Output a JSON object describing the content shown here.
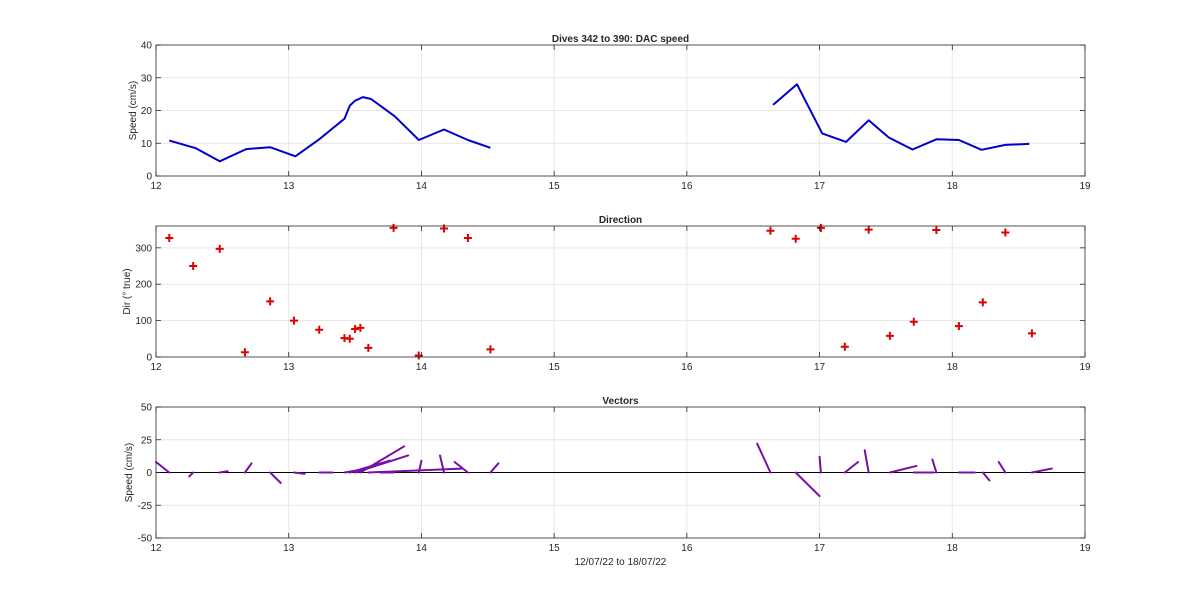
{
  "figure": {
    "xlabel": "12/07/22 to 18/07/22"
  },
  "chart_data": [
    {
      "type": "line",
      "title": "Dives 342 to 390: DAC speed",
      "ylabel": "Speed (cm/s)",
      "xlim": [
        12,
        19
      ],
      "ylim": [
        0,
        40
      ],
      "xticks": [
        12,
        13,
        14,
        15,
        16,
        17,
        18,
        19
      ],
      "yticks": [
        0,
        10,
        20,
        30,
        40
      ],
      "grid": true,
      "color": "#0000cc",
      "segments": [
        [
          [
            12.1,
            10.8
          ],
          [
            12.3,
            8.5
          ],
          [
            12.48,
            4.5
          ],
          [
            12.68,
            8.2
          ],
          [
            12.86,
            8.8
          ],
          [
            13.05,
            6.0
          ],
          [
            13.23,
            11.2
          ],
          [
            13.42,
            17.5
          ],
          [
            13.46,
            21.5
          ],
          [
            13.5,
            23.0
          ],
          [
            13.56,
            24.1
          ],
          [
            13.62,
            23.5
          ],
          [
            13.8,
            18.2
          ],
          [
            13.98,
            11.0
          ],
          [
            14.17,
            14.2
          ],
          [
            14.35,
            11.0
          ],
          [
            14.52,
            8.6
          ]
        ],
        [
          [
            16.65,
            21.7
          ],
          [
            16.83,
            28.0
          ],
          [
            17.02,
            13.0
          ],
          [
            17.2,
            10.4
          ],
          [
            17.37,
            17.0
          ],
          [
            17.52,
            11.8
          ],
          [
            17.7,
            8.1
          ],
          [
            17.88,
            11.2
          ],
          [
            18.05,
            11.0
          ],
          [
            18.22,
            8.0
          ],
          [
            18.4,
            9.5
          ],
          [
            18.58,
            9.8
          ]
        ]
      ]
    },
    {
      "type": "scatter",
      "title": "Direction",
      "ylabel": "Dir (° true)",
      "xlim": [
        12,
        19
      ],
      "ylim": [
        0,
        360
      ],
      "xticks": [
        12,
        13,
        14,
        15,
        16,
        17,
        18,
        19
      ],
      "yticks": [
        0,
        100,
        200,
        300
      ],
      "grid": true,
      "marker": "+",
      "color": "#dd0000",
      "points": [
        [
          12.1,
          327
        ],
        [
          12.28,
          250
        ],
        [
          12.48,
          297
        ],
        [
          12.67,
          13
        ],
        [
          12.86,
          153
        ],
        [
          13.04,
          100
        ],
        [
          13.23,
          75
        ],
        [
          13.42,
          52
        ],
        [
          13.46,
          50
        ],
        [
          13.5,
          77
        ],
        [
          13.54,
          80
        ],
        [
          13.6,
          25
        ],
        [
          13.79,
          355
        ],
        [
          13.98,
          4
        ],
        [
          14.17,
          353
        ],
        [
          14.35,
          327
        ],
        [
          14.52,
          21
        ],
        [
          16.63,
          347
        ],
        [
          16.82,
          325
        ],
        [
          17.01,
          355
        ],
        [
          17.19,
          28
        ],
        [
          17.37,
          350
        ],
        [
          17.53,
          58
        ],
        [
          17.71,
          97
        ],
        [
          17.88,
          349
        ],
        [
          18.05,
          85
        ],
        [
          18.23,
          150
        ],
        [
          18.4,
          342
        ],
        [
          18.6,
          65
        ]
      ]
    },
    {
      "type": "line",
      "subtype": "vectors",
      "title": "Vectors",
      "ylabel": "Speed (cm/s)",
      "xlim": [
        12,
        19
      ],
      "ylim": [
        -50,
        50
      ],
      "xticks": [
        12,
        13,
        14,
        15,
        16,
        17,
        18,
        19
      ],
      "yticks": [
        -50,
        -25,
        0,
        25,
        50
      ],
      "grid": true,
      "zero_line": true,
      "color": "#7a0fa8",
      "vectors": [
        [
          12.1,
          -0.1,
          8
        ],
        [
          12.28,
          -0.03,
          -3
        ],
        [
          12.48,
          0.06,
          1
        ],
        [
          12.67,
          0.05,
          7
        ],
        [
          12.86,
          0.08,
          -8
        ],
        [
          13.04,
          0.08,
          -1
        ],
        [
          13.23,
          0.1,
          0
        ],
        [
          13.42,
          0.12,
          2
        ],
        [
          13.46,
          0.3,
          9
        ],
        [
          13.5,
          0.4,
          13
        ],
        [
          13.54,
          0.33,
          20
        ],
        [
          13.6,
          0.7,
          3
        ],
        [
          13.79,
          -0.1,
          0
        ],
        [
          13.98,
          0.02,
          9
        ],
        [
          14.17,
          -0.03,
          13
        ],
        [
          14.35,
          -0.1,
          8
        ],
        [
          14.52,
          0.06,
          7
        ],
        [
          16.63,
          -0.1,
          22
        ],
        [
          16.82,
          0.18,
          -18
        ],
        [
          17.01,
          -0.01,
          12
        ],
        [
          17.19,
          0.1,
          8
        ],
        [
          17.37,
          -0.03,
          17
        ],
        [
          17.53,
          0.2,
          5
        ],
        [
          17.71,
          0.15,
          0
        ],
        [
          17.88,
          -0.03,
          10
        ],
        [
          18.05,
          0.12,
          0
        ],
        [
          18.23,
          0.05,
          -6
        ],
        [
          18.4,
          -0.05,
          8
        ],
        [
          18.6,
          0.15,
          3
        ]
      ]
    }
  ]
}
